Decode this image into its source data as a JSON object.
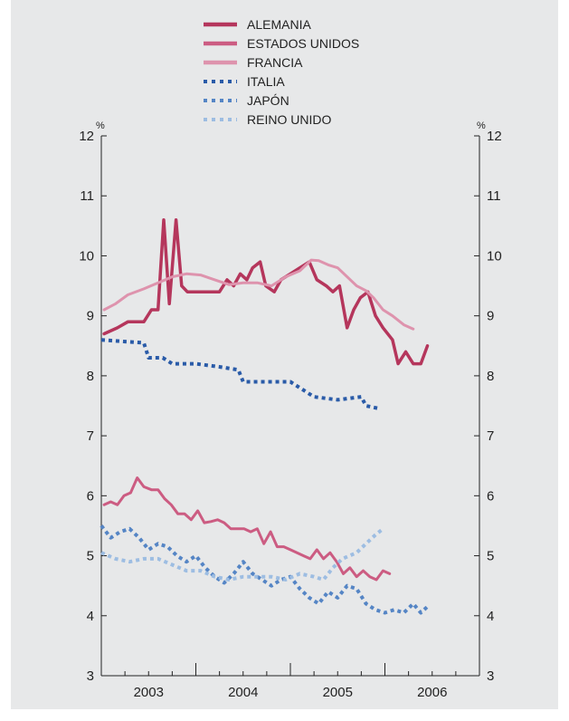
{
  "chart_data": {
    "type": "line",
    "ylim": [
      3,
      12
    ],
    "yticks": [
      3,
      4,
      5,
      6,
      7,
      8,
      9,
      10,
      11,
      12
    ],
    "y_unit_left": "%",
    "y_unit_right": "%",
    "xlim": [
      2002.5,
      2006.5
    ],
    "xtick_labels": [
      {
        "label": "2003",
        "x": 2003.0
      },
      {
        "label": "2004",
        "x": 2004.0
      },
      {
        "label": "2005",
        "x": 2005.0
      },
      {
        "label": "2006",
        "x": 2006.0
      }
    ],
    "x_minor_ticks": [
      2002.5,
      2002.75,
      2003.0,
      2003.25,
      2003.5,
      2003.75,
      2004.0,
      2004.25,
      2004.5,
      2004.75,
      2005.0,
      2005.25,
      2005.5,
      2005.75,
      2006.0,
      2006.25,
      2006.5
    ],
    "x_year_boundaries": [
      2003.5,
      2004.5,
      2005.5
    ],
    "grid": false,
    "legend_position": "top-center",
    "series": [
      {
        "name": "ALEMANIA",
        "color": "#b5365c",
        "style": "solid",
        "width": 3.5,
        "points": [
          [
            2002.53,
            8.7
          ],
          [
            2002.67,
            8.8
          ],
          [
            2002.78,
            8.9
          ],
          [
            2002.86,
            8.9
          ],
          [
            2002.95,
            8.9
          ],
          [
            2003.03,
            9.1
          ],
          [
            2003.1,
            9.1
          ],
          [
            2003.16,
            10.6
          ],
          [
            2003.22,
            9.2
          ],
          [
            2003.29,
            10.6
          ],
          [
            2003.35,
            9.5
          ],
          [
            2003.41,
            9.4
          ],
          [
            2003.55,
            9.4
          ],
          [
            2003.75,
            9.4
          ],
          [
            2003.83,
            9.6
          ],
          [
            2003.9,
            9.5
          ],
          [
            2003.97,
            9.7
          ],
          [
            2004.04,
            9.6
          ],
          [
            2004.1,
            9.8
          ],
          [
            2004.18,
            9.9
          ],
          [
            2004.24,
            9.5
          ],
          [
            2004.33,
            9.4
          ],
          [
            2004.4,
            9.6
          ],
          [
            2004.5,
            9.7
          ],
          [
            2004.6,
            9.8
          ],
          [
            2004.7,
            9.9
          ],
          [
            2004.78,
            9.6
          ],
          [
            2004.88,
            9.5
          ],
          [
            2004.95,
            9.4
          ],
          [
            2005.02,
            9.5
          ],
          [
            2005.1,
            8.8
          ],
          [
            2005.17,
            9.1
          ],
          [
            2005.24,
            9.3
          ],
          [
            2005.32,
            9.4
          ],
          [
            2005.4,
            9.0
          ],
          [
            2005.48,
            8.8
          ],
          [
            2005.58,
            8.6
          ],
          [
            2005.64,
            8.2
          ],
          [
            2005.72,
            8.4
          ],
          [
            2005.8,
            8.2
          ],
          [
            2005.88,
            8.2
          ],
          [
            2005.95,
            8.5
          ]
        ]
      },
      {
        "name": "ESTADOS UNIDOS",
        "color": "#cc5c82",
        "style": "solid",
        "width": 3,
        "points": [
          [
            2002.53,
            5.85
          ],
          [
            2002.6,
            5.9
          ],
          [
            2002.67,
            5.85
          ],
          [
            2002.74,
            6.0
          ],
          [
            2002.81,
            6.05
          ],
          [
            2002.88,
            6.3
          ],
          [
            2002.95,
            6.15
          ],
          [
            2003.03,
            6.1
          ],
          [
            2003.1,
            6.1
          ],
          [
            2003.17,
            5.95
          ],
          [
            2003.24,
            5.85
          ],
          [
            2003.31,
            5.7
          ],
          [
            2003.38,
            5.7
          ],
          [
            2003.45,
            5.6
          ],
          [
            2003.52,
            5.75
          ],
          [
            2003.59,
            5.55
          ],
          [
            2003.66,
            5.57
          ],
          [
            2003.73,
            5.6
          ],
          [
            2003.8,
            5.55
          ],
          [
            2003.87,
            5.45
          ],
          [
            2003.94,
            5.45
          ],
          [
            2004.01,
            5.45
          ],
          [
            2004.08,
            5.4
          ],
          [
            2004.15,
            5.45
          ],
          [
            2004.22,
            5.2
          ],
          [
            2004.29,
            5.4
          ],
          [
            2004.36,
            5.15
          ],
          [
            2004.43,
            5.15
          ],
          [
            2004.5,
            5.1
          ],
          [
            2004.57,
            5.05
          ],
          [
            2004.64,
            5.0
          ],
          [
            2004.71,
            4.95
          ],
          [
            2004.78,
            5.1
          ],
          [
            2004.85,
            4.95
          ],
          [
            2004.92,
            5.05
          ],
          [
            2004.99,
            4.9
          ],
          [
            2005.06,
            4.7
          ],
          [
            2005.13,
            4.8
          ],
          [
            2005.2,
            4.65
          ],
          [
            2005.27,
            4.75
          ],
          [
            2005.34,
            4.65
          ],
          [
            2005.41,
            4.6
          ],
          [
            2005.48,
            4.75
          ],
          [
            2005.55,
            4.7
          ]
        ]
      },
      {
        "name": "FRANCIA",
        "color": "#de93ad",
        "style": "solid",
        "width": 3,
        "points": [
          [
            2002.53,
            9.1
          ],
          [
            2002.65,
            9.2
          ],
          [
            2002.78,
            9.35
          ],
          [
            2002.95,
            9.45
          ],
          [
            2003.1,
            9.55
          ],
          [
            2003.25,
            9.65
          ],
          [
            2003.4,
            9.7
          ],
          [
            2003.55,
            9.68
          ],
          [
            2003.7,
            9.6
          ],
          [
            2003.85,
            9.52
          ],
          [
            2004.0,
            9.55
          ],
          [
            2004.15,
            9.55
          ],
          [
            2004.3,
            9.5
          ],
          [
            2004.45,
            9.65
          ],
          [
            2004.6,
            9.75
          ],
          [
            2004.72,
            9.93
          ],
          [
            2004.8,
            9.92
          ],
          [
            2004.9,
            9.85
          ],
          [
            2005.0,
            9.8
          ],
          [
            2005.1,
            9.65
          ],
          [
            2005.2,
            9.5
          ],
          [
            2005.3,
            9.42
          ],
          [
            2005.38,
            9.3
          ],
          [
            2005.48,
            9.1
          ],
          [
            2005.58,
            9.0
          ],
          [
            2005.7,
            8.85
          ],
          [
            2005.8,
            8.78
          ]
        ]
      },
      {
        "name": "ITALIA",
        "color": "#2a5ba8",
        "style": "dotted",
        "width": 4,
        "points": [
          [
            2002.5,
            8.6
          ],
          [
            2002.75,
            8.57
          ],
          [
            2002.95,
            8.55
          ],
          [
            2003.0,
            8.3
          ],
          [
            2003.15,
            8.3
          ],
          [
            2003.25,
            8.2
          ],
          [
            2003.5,
            8.2
          ],
          [
            2003.75,
            8.15
          ],
          [
            2003.95,
            8.1
          ],
          [
            2004.0,
            7.9
          ],
          [
            2004.25,
            7.9
          ],
          [
            2004.5,
            7.9
          ],
          [
            2004.75,
            7.65
          ],
          [
            2005.0,
            7.6
          ],
          [
            2005.25,
            7.65
          ],
          [
            2005.3,
            7.5
          ],
          [
            2005.45,
            7.45
          ]
        ]
      },
      {
        "name": "JAPÓN",
        "color": "#5585c5",
        "style": "dotted",
        "width": 4,
        "points": [
          [
            2002.5,
            5.5
          ],
          [
            2002.6,
            5.3
          ],
          [
            2002.7,
            5.4
          ],
          [
            2002.8,
            5.45
          ],
          [
            2002.9,
            5.3
          ],
          [
            2003.0,
            5.1
          ],
          [
            2003.1,
            5.2
          ],
          [
            2003.2,
            5.15
          ],
          [
            2003.3,
            5.0
          ],
          [
            2003.4,
            4.9
          ],
          [
            2003.5,
            5.0
          ],
          [
            2003.6,
            4.8
          ],
          [
            2003.7,
            4.65
          ],
          [
            2003.8,
            4.55
          ],
          [
            2003.9,
            4.7
          ],
          [
            2004.0,
            4.9
          ],
          [
            2004.1,
            4.7
          ],
          [
            2004.2,
            4.6
          ],
          [
            2004.3,
            4.5
          ],
          [
            2004.4,
            4.6
          ],
          [
            2004.5,
            4.65
          ],
          [
            2004.6,
            4.45
          ],
          [
            2004.7,
            4.3
          ],
          [
            2004.8,
            4.2
          ],
          [
            2004.9,
            4.4
          ],
          [
            2005.0,
            4.3
          ],
          [
            2005.1,
            4.5
          ],
          [
            2005.2,
            4.45
          ],
          [
            2005.3,
            4.2
          ],
          [
            2005.4,
            4.1
          ],
          [
            2005.5,
            4.05
          ],
          [
            2005.6,
            4.1
          ],
          [
            2005.7,
            4.05
          ],
          [
            2005.8,
            4.2
          ],
          [
            2005.88,
            4.05
          ],
          [
            2005.95,
            4.15
          ]
        ]
      },
      {
        "name": "REINO UNIDO",
        "color": "#9dbde2",
        "style": "dotted",
        "width": 4,
        "points": [
          [
            2002.5,
            5.05
          ],
          [
            2002.65,
            4.95
          ],
          [
            2002.8,
            4.9
          ],
          [
            2002.95,
            4.95
          ],
          [
            2003.1,
            4.95
          ],
          [
            2003.25,
            4.85
          ],
          [
            2003.4,
            4.75
          ],
          [
            2003.55,
            4.75
          ],
          [
            2003.7,
            4.65
          ],
          [
            2003.85,
            4.6
          ],
          [
            2004.0,
            4.65
          ],
          [
            2004.15,
            4.65
          ],
          [
            2004.3,
            4.65
          ],
          [
            2004.45,
            4.6
          ],
          [
            2004.6,
            4.7
          ],
          [
            2004.75,
            4.65
          ],
          [
            2004.85,
            4.6
          ],
          [
            2004.95,
            4.8
          ],
          [
            2005.05,
            4.95
          ],
          [
            2005.2,
            5.05
          ],
          [
            2005.3,
            5.2
          ],
          [
            2005.4,
            5.35
          ],
          [
            2005.48,
            5.45
          ]
        ]
      }
    ]
  }
}
